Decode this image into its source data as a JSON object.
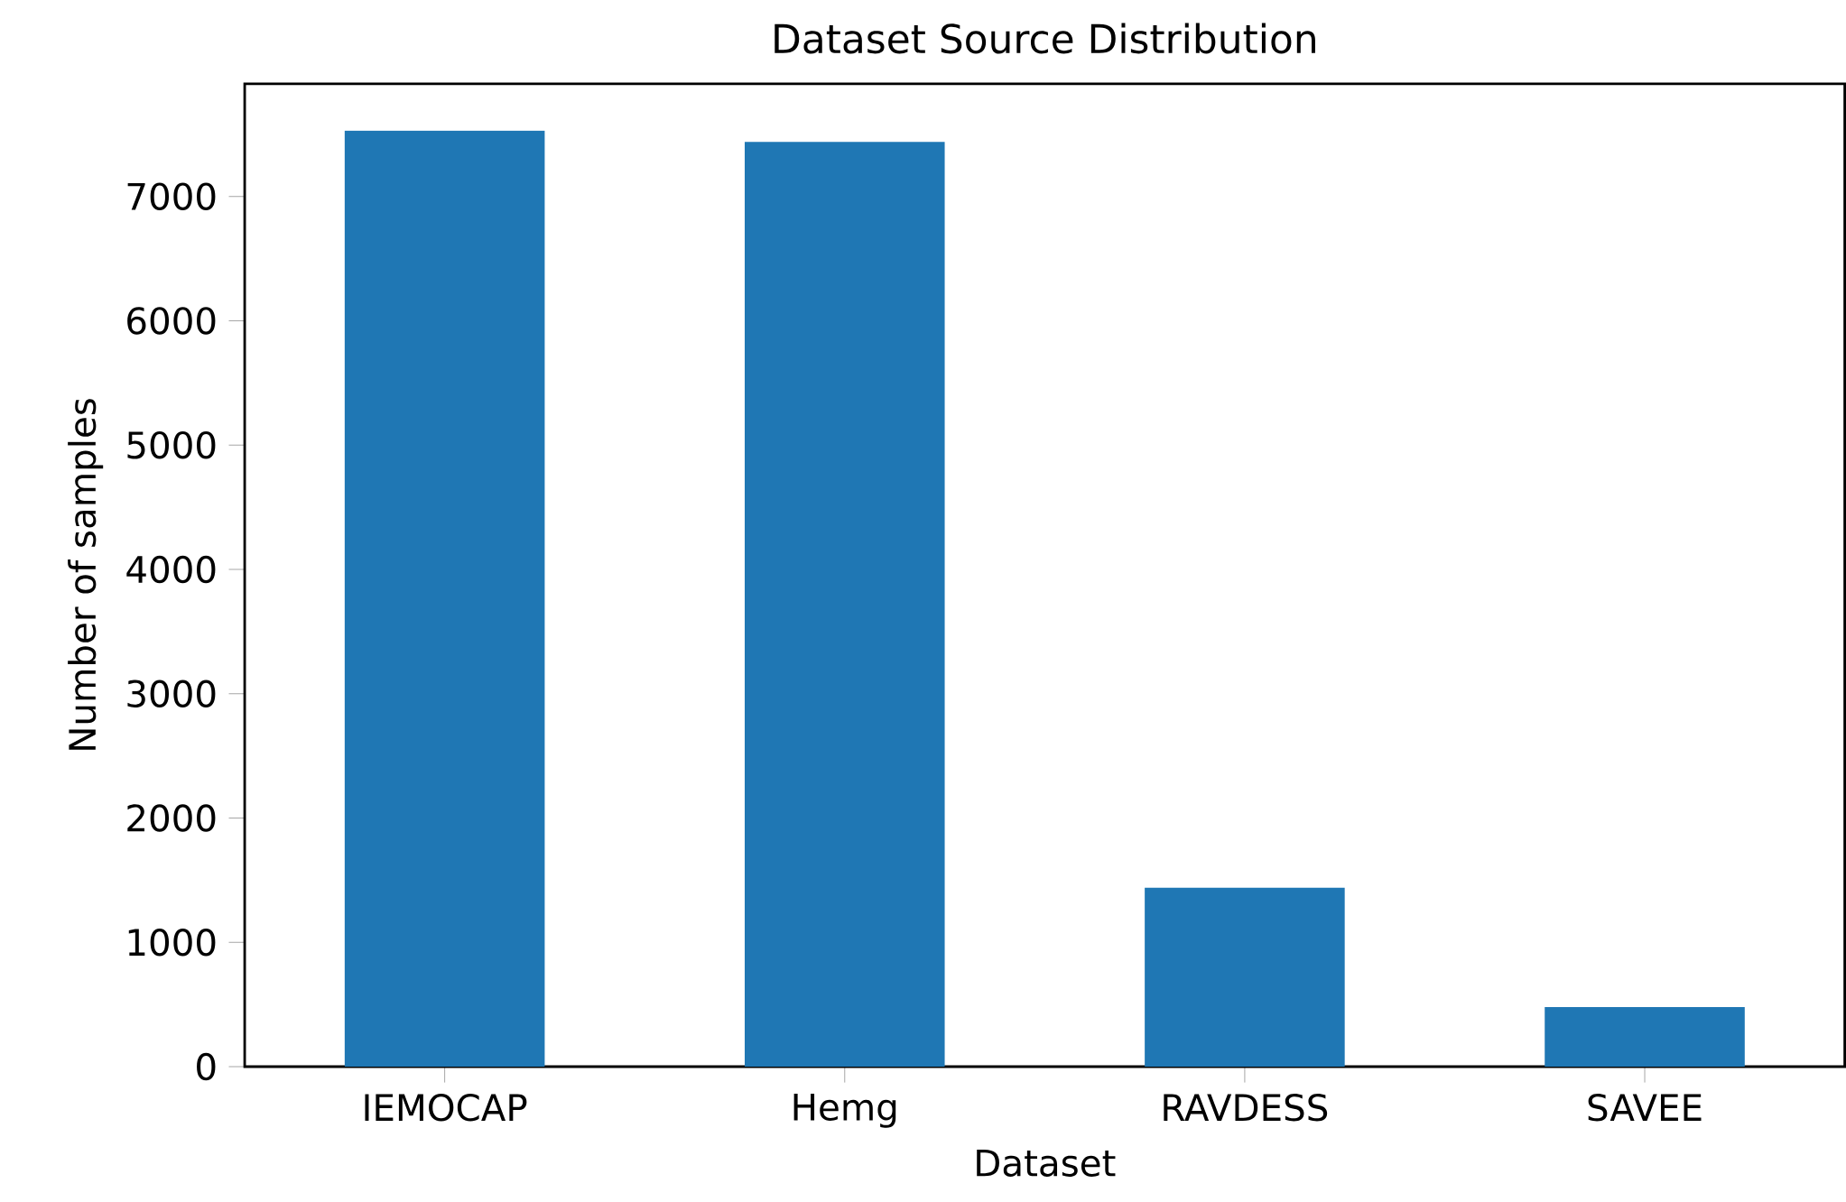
{
  "chart_data": {
    "type": "bar",
    "title": "Dataset Source Distribution",
    "xlabel": "Dataset",
    "ylabel": "Number of samples",
    "categories": [
      "IEMOCAP",
      "Hemg",
      "RAVDESS",
      "SAVEE"
    ],
    "values": [
      7530,
      7440,
      1440,
      480
    ],
    "color": "#1f77b4",
    "ylim": [
      0,
      7906
    ],
    "yticks": [
      0,
      1000,
      2000,
      3000,
      4000,
      5000,
      6000,
      7000
    ],
    "grid": false
  }
}
